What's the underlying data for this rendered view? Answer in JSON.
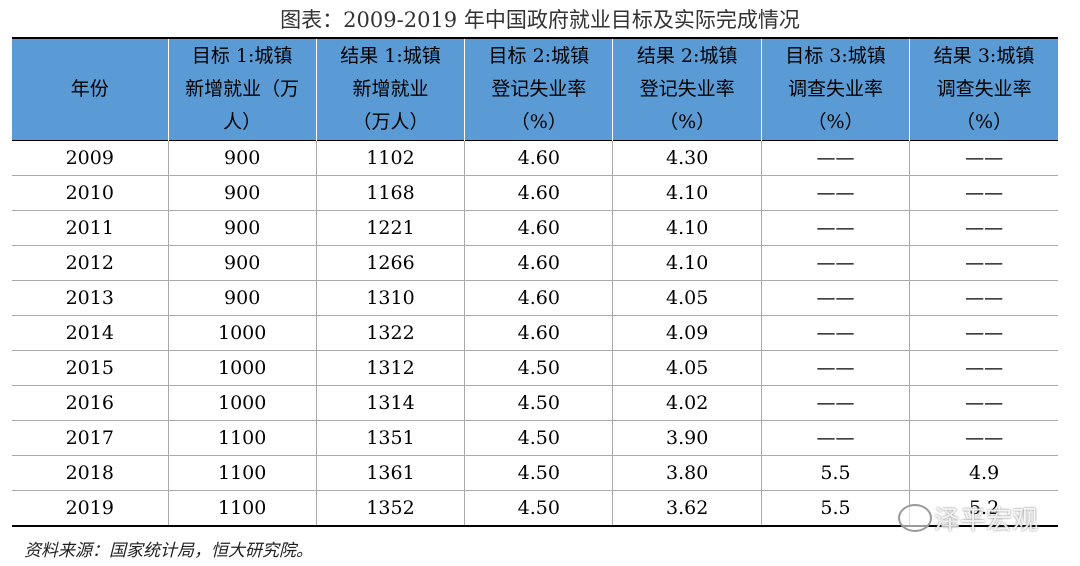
{
  "title": "图表：2009-2019 年中国政府就业目标及实际完成情况",
  "table": {
    "header": [
      [
        "年份"
      ],
      [
        "目标 1:城镇",
        "新增就业（万",
        "人）"
      ],
      [
        "结果 1:城镇",
        "新增就业",
        "（万人）"
      ],
      [
        "目标 2:城镇",
        "登记失业率",
        "（%）"
      ],
      [
        "结果 2:城镇",
        "登记失业率",
        "（%）"
      ],
      [
        "目标 3:城镇",
        "调查失业率",
        "（%）"
      ],
      [
        "结果 3:城镇",
        "调查失业率",
        "（%）"
      ]
    ],
    "rows": [
      [
        "2009",
        "900",
        "1102",
        "4.60",
        "4.30",
        "——",
        "——"
      ],
      [
        "2010",
        "900",
        "1168",
        "4.60",
        "4.10",
        "——",
        "——"
      ],
      [
        "2011",
        "900",
        "1221",
        "4.60",
        "4.10",
        "——",
        "——"
      ],
      [
        "2012",
        "900",
        "1266",
        "4.60",
        "4.10",
        "——",
        "——"
      ],
      [
        "2013",
        "900",
        "1310",
        "4.60",
        "4.05",
        "——",
        "——"
      ],
      [
        "2014",
        "1000",
        "1322",
        "4.60",
        "4.09",
        "——",
        "——"
      ],
      [
        "2015",
        "1000",
        "1312",
        "4.50",
        "4.05",
        "——",
        "——"
      ],
      [
        "2016",
        "1000",
        "1314",
        "4.50",
        "4.02",
        "——",
        "——"
      ],
      [
        "2017",
        "1100",
        "1351",
        "4.50",
        "3.90",
        "——",
        "——"
      ],
      [
        "2018",
        "1100",
        "1361",
        "4.50",
        "3.80",
        "5.5",
        "4.9"
      ],
      [
        "2019",
        "1100",
        "1352",
        "4.50",
        "3.62",
        "5.5",
        "5.2"
      ]
    ]
  },
  "source": "资料来源：国家统计局，恒大研究院。",
  "watermark": "泽平宏观"
}
